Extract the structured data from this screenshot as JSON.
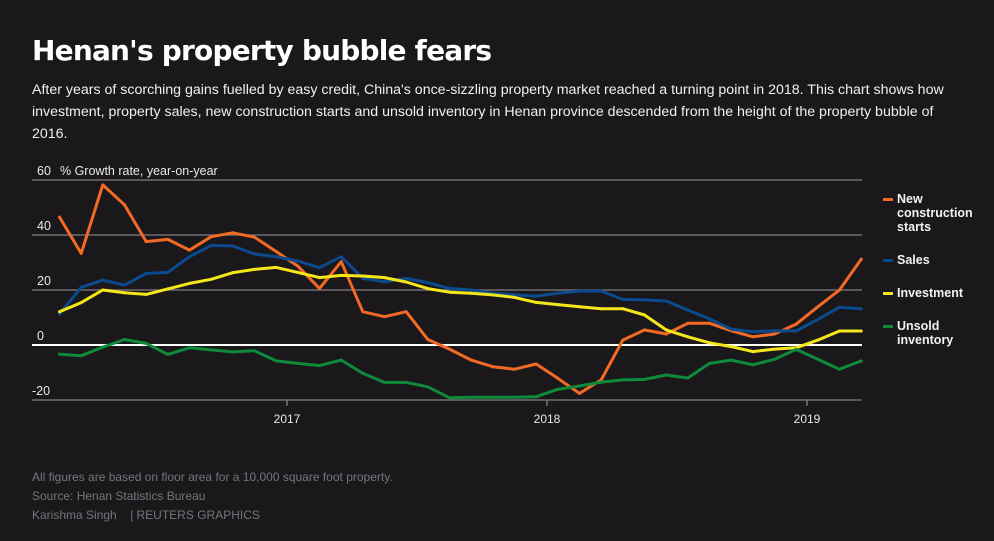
{
  "title": "Henan's property bubble fears",
  "subtitle": "After years of scorching gains fuelled by easy credit, China's once-sizzling property market reached a turning point in 2018. This chart shows how investment, property sales, new construction starts and unsold inventory in Henan province descended from the height of the property bubble of 2016.",
  "footer": {
    "note": "All figures are based on floor area for a 10,000 square foot property.",
    "source": "Source: Henan Statistics Bureau",
    "author": "Karishma Singh",
    "credit": "| REUTERS GRAPHICS"
  },
  "chart_data": {
    "type": "line",
    "title": "",
    "ylabel": "% Growth rate, year-on-year",
    "xlabel": "",
    "ylim": [
      -20,
      60
    ],
    "yticks": [
      "60",
      "40",
      "20",
      "0",
      "-20"
    ],
    "xticks": [
      "2017",
      "2018",
      "2019"
    ],
    "grid": true,
    "legend_placement": "right",
    "x": [
      "2016-02",
      "2016-03",
      "2016-04",
      "2016-05",
      "2016-06",
      "2016-07",
      "2016-08",
      "2016-09",
      "2016-10",
      "2016-11",
      "2016-12",
      "2017-01",
      "2017-02",
      "2017-03",
      "2017-04",
      "2017-05",
      "2017-06",
      "2017-07",
      "2017-08",
      "2017-09",
      "2017-10",
      "2017-11",
      "2017-12",
      "2018-01",
      "2018-02",
      "2018-03",
      "2018-04",
      "2018-05",
      "2018-06",
      "2018-07",
      "2018-08",
      "2018-09",
      "2018-10",
      "2018-11",
      "2018-12",
      "2019-01",
      "2019-02",
      "2019-03"
    ],
    "series": [
      {
        "name": "New construction starts",
        "color": "#f26a24",
        "values": [
          46.5,
          33.3,
          58.2,
          51,
          37.6,
          38.4,
          34.5,
          39.4,
          40.8,
          39.2,
          34,
          28.7,
          20.6,
          30.3,
          12.1,
          10.3,
          12.1,
          2,
          -1.5,
          -5.5,
          -7.9,
          -8.8,
          -6.9,
          -12.1,
          -17.6,
          -12.7,
          1.8,
          5.5,
          4,
          7.9,
          7.9,
          5.2,
          3,
          4,
          7.6,
          13.9,
          20,
          31.2
        ]
      },
      {
        "name": "Sales",
        "color": "#0b4a8c",
        "values": [
          11.2,
          21,
          23.6,
          21.8,
          26,
          26.4,
          32.1,
          36.2,
          36,
          33.1,
          32.1,
          30.5,
          28.1,
          32.1,
          24.2,
          23,
          24.2,
          22.7,
          20.6,
          20,
          18.8,
          18.2,
          17.8,
          18.8,
          19.6,
          19.6,
          16.6,
          16.4,
          16,
          12.7,
          9.5,
          5.8,
          4.8,
          5.2,
          5.1,
          9.3,
          13.7,
          13.2
        ]
      },
      {
        "name": "Investment",
        "color": "#f5e61c",
        "values": [
          12.1,
          15.4,
          20,
          19,
          18.4,
          20.4,
          22.4,
          23.9,
          26.3,
          27.5,
          28.2,
          26.4,
          24.5,
          25.3,
          25.1,
          24.5,
          22.9,
          20.5,
          19.2,
          18.8,
          18.2,
          17.3,
          15.5,
          14.7,
          13.9,
          13.2,
          13.2,
          10.9,
          5.5,
          3,
          0.8,
          -0.6,
          -2.4,
          -1.5,
          -1,
          1.8,
          5.1,
          5.1
        ]
      },
      {
        "name": "Unsold inventory",
        "color": "#0e8a3a",
        "values": [
          -3.3,
          -3.9,
          -0.8,
          2,
          0.6,
          -3.4,
          -1,
          -1.8,
          -2.5,
          -2.1,
          -5.8,
          -6.7,
          -7.5,
          -5.5,
          -10.3,
          -13.6,
          -13.6,
          -15.2,
          -19.2,
          -19,
          -19,
          -19,
          -18.8,
          -16.1,
          -14.9,
          -13.5,
          -12.7,
          -12.5,
          -10.9,
          -12,
          -6.7,
          -5.5,
          -7.2,
          -5.2,
          -1.6,
          -5.2,
          -8.8,
          -5.8
        ]
      }
    ]
  },
  "legend": [
    "New construction starts",
    "Sales",
    "Investment",
    "Unsold inventory"
  ]
}
